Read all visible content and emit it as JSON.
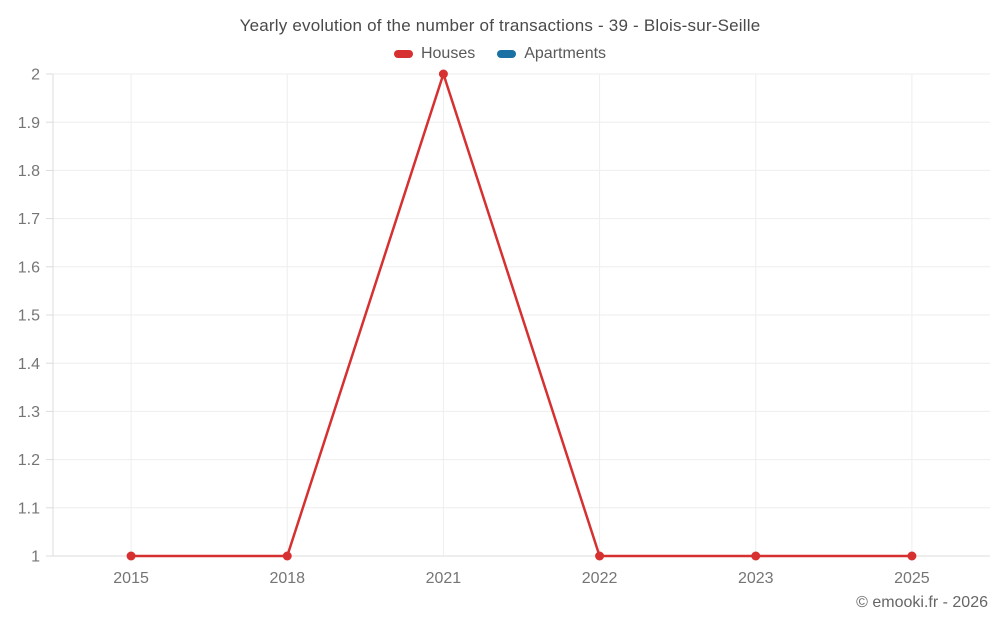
{
  "chart_data": {
    "type": "line",
    "title": "Yearly evolution of the number of transactions - 39 - Blois-sur-Seille",
    "categories": [
      "2015",
      "2018",
      "2021",
      "2022",
      "2023",
      "2025"
    ],
    "series": [
      {
        "name": "Houses",
        "color": "#d63031",
        "values": [
          1,
          1,
          2,
          1,
          1,
          1
        ]
      },
      {
        "name": "Apartments",
        "color": "#1a72a4",
        "values": []
      }
    ],
    "xlabel": "",
    "ylabel": "",
    "ylim": [
      1,
      2
    ],
    "ytick_step": 0.1,
    "grid": true,
    "legend_position": "top",
    "marker": "circle"
  },
  "footer": {
    "credit": "© emooki.fr - 2026"
  },
  "colors": {
    "background": "#ffffff",
    "gridline": "#eeeeee",
    "axis": "#dcdcdc",
    "tick_label": "#757575"
  }
}
